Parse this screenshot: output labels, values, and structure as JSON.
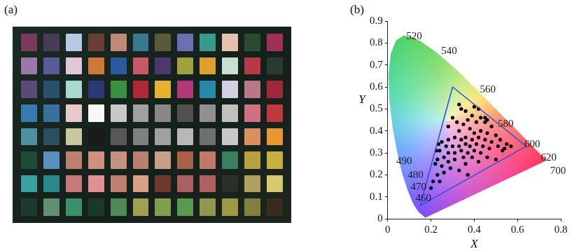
{
  "panel_a": {
    "panel_label": "(a)",
    "patch_colors": [
      [
        "#7a3a5e",
        "#4a3a5a",
        "#b8c8e0",
        "#6a3e34",
        "#c08878",
        "#3a7890",
        "#5a5a3a",
        "#6a70b0",
        "#3a9a8a",
        "#e8c0b0",
        "#2a4a34",
        "#a03058"
      ],
      [
        "#9a78a8",
        "#5a5a98",
        "#e0c8d8",
        "#d07838",
        "#2a5aa0",
        "#c85868",
        "#4a3a6a",
        "#a0a040",
        "#e0a030",
        "#c8e0d0",
        "#b83848",
        "#2a3a30"
      ],
      [
        "#5a4a7a",
        "#2a5070",
        "#a8d8d0",
        "#2a3a70",
        "#3a9040",
        "#b02838",
        "#e8b030",
        "#b03878",
        "#2888a8",
        "#d0d0e0",
        "#b87888",
        "#a02838"
      ],
      [
        "#3a78b0",
        "#3a70a0",
        "#e8c8c8",
        "#f8f8f8",
        "#c8c8c8",
        "#a0a0a0",
        "#888888",
        "#505050",
        "#909090",
        "#c0c0c0",
        "#d07080",
        "#c03840"
      ],
      [
        "#4a90a0",
        "#2a5060",
        "#c8c8a0",
        "#1a1a1a",
        "#585858",
        "#808080",
        "#a0a0a0",
        "#b8b8b8",
        "#707070",
        "#c8c8c8",
        "#d89060",
        "#e89830"
      ],
      [
        "#1e4a38",
        "#5a90c0",
        "#c08070",
        "#d09080",
        "#c89080",
        "#b88070",
        "#c8a088",
        "#a86048",
        "#c07868",
        "#3a8060",
        "#b8a040",
        "#c8b040"
      ],
      [
        "#3aa0a0",
        "#2a8a8a",
        "#c87878",
        "#e09090",
        "#c08070",
        "#d8a088",
        "#6a3a2a",
        "#a86060",
        "#b06060",
        "#283028",
        "#b0a060",
        "#d8c870"
      ],
      [
        "#1e3a2e",
        "#609070",
        "#3a9068",
        "#1a3a28",
        "#508858",
        "#a0a050",
        "#80a050",
        "#5a9a50",
        "#909850",
        "#a09848",
        "#808040",
        "#3a2a20"
      ]
    ]
  },
  "chart_data": {
    "type": "scatter",
    "panel_label": "(b)",
    "x_label": "X",
    "y_label": "Y",
    "xlim": [
      0,
      0.8
    ],
    "xticks": [
      0,
      0.2,
      0.4,
      0.6,
      0.8
    ],
    "ylim": [
      0,
      0.9
    ],
    "yticks": [
      0,
      0.1,
      0.2,
      0.3,
      0.4,
      0.5,
      0.6,
      0.7,
      0.8,
      0.9
    ],
    "grid": false,
    "spectral_locus": {
      "x": [
        0.1741,
        0.144,
        0.1241,
        0.1096,
        0.0913,
        0.0687,
        0.0454,
        0.0235,
        0.0082,
        0.0039,
        0.0139,
        0.0389,
        0.0743,
        0.1142,
        0.1547,
        0.2296,
        0.3016,
        0.3731,
        0.4441,
        0.5125,
        0.5752,
        0.627,
        0.6658,
        0.6915,
        0.719,
        0.7347
      ],
      "y": [
        0.005,
        0.0297,
        0.0578,
        0.0868,
        0.1327,
        0.2007,
        0.295,
        0.4127,
        0.5384,
        0.6548,
        0.7502,
        0.812,
        0.8338,
        0.8262,
        0.8059,
        0.7543,
        0.6923,
        0.6245,
        0.5547,
        0.4866,
        0.4242,
        0.3725,
        0.334,
        0.3083,
        0.2809,
        0.2653
      ]
    },
    "wavelength_labels": [
      {
        "text": "520",
        "x": 0.122,
        "y": 0.83
      },
      {
        "text": "540",
        "x": 0.284,
        "y": 0.761
      },
      {
        "text": "560",
        "x": 0.463,
        "y": 0.588
      },
      {
        "text": "580",
        "x": 0.545,
        "y": 0.43
      },
      {
        "text": "600",
        "x": 0.668,
        "y": 0.339
      },
      {
        "text": "620",
        "x": 0.744,
        "y": 0.276
      },
      {
        "text": "700",
        "x": 0.787,
        "y": 0.218
      },
      {
        "text": "490",
        "x": 0.076,
        "y": 0.261
      },
      {
        "text": "480",
        "x": 0.129,
        "y": 0.197
      },
      {
        "text": "470",
        "x": 0.142,
        "y": 0.142
      },
      {
        "text": "460",
        "x": 0.165,
        "y": 0.091
      }
    ],
    "series": [
      {
        "type": "line",
        "color": "#3355cc",
        "line_style": "solid",
        "x": [
          0.3,
          0.64,
          0.15,
          0.3
        ],
        "y": [
          0.6,
          0.33,
          0.06,
          0.6
        ]
      },
      {
        "type": "scatter",
        "color": "#000000",
        "marker": "circle",
        "x": [
          0.33,
          0.34,
          0.36,
          0.4,
          0.42,
          0.45,
          0.46,
          0.39,
          0.43,
          0.37,
          0.41,
          0.45,
          0.48,
          0.35,
          0.32,
          0.3,
          0.28,
          0.33,
          0.38,
          0.4,
          0.43,
          0.46,
          0.5,
          0.52,
          0.55,
          0.57,
          0.54,
          0.51,
          0.48,
          0.45,
          0.42,
          0.39,
          0.36,
          0.34,
          0.31,
          0.28,
          0.25,
          0.235,
          0.225,
          0.24,
          0.27,
          0.3,
          0.33,
          0.36,
          0.38,
          0.41,
          0.44,
          0.47,
          0.43,
          0.4,
          0.37,
          0.34,
          0.31,
          0.28,
          0.26,
          0.23,
          0.22,
          0.25,
          0.28,
          0.31,
          0.35,
          0.39,
          0.46,
          0.5,
          0.29,
          0.26,
          0.23,
          0.21,
          0.24,
          0.2,
          0.33,
          0.36,
          0.42,
          0.37,
          0.53
        ],
        "y": [
          0.52,
          0.5,
          0.49,
          0.51,
          0.5,
          0.46,
          0.45,
          0.47,
          0.46,
          0.45,
          0.44,
          0.44,
          0.42,
          0.43,
          0.44,
          0.46,
          0.42,
          0.4,
          0.41,
          0.39,
          0.4,
          0.39,
          0.38,
          0.36,
          0.34,
          0.33,
          0.32,
          0.33,
          0.35,
          0.36,
          0.37,
          0.36,
          0.37,
          0.36,
          0.37,
          0.36,
          0.35,
          0.34,
          0.31,
          0.31,
          0.33,
          0.33,
          0.33,
          0.34,
          0.33,
          0.34,
          0.33,
          0.32,
          0.3,
          0.31,
          0.3,
          0.31,
          0.3,
          0.3,
          0.28,
          0.27,
          0.25,
          0.24,
          0.26,
          0.27,
          0.28,
          0.28,
          0.28,
          0.27,
          0.23,
          0.21,
          0.2,
          0.17,
          0.17,
          0.14,
          0.22,
          0.25,
          0.26,
          0.2,
          0.31
        ]
      }
    ]
  }
}
